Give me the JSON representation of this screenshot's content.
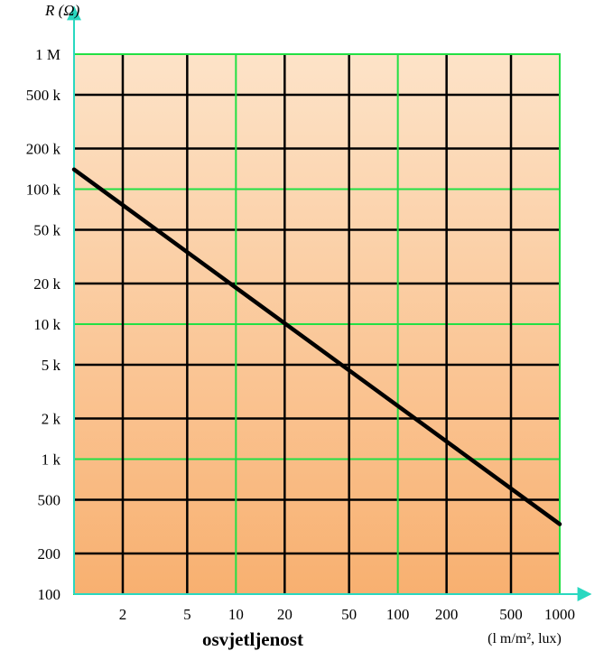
{
  "chart_data": {
    "type": "line",
    "ylabel": "R (Ω)",
    "xlabel": "osvjetljenost",
    "x_unit_label": "(l m/m², lux)",
    "x_scale": "log",
    "y_scale": "log",
    "x_ticks": [
      {
        "value": 2,
        "label": "2"
      },
      {
        "value": 5,
        "label": "5"
      },
      {
        "value": 10,
        "label": "10"
      },
      {
        "value": 20,
        "label": "20"
      },
      {
        "value": 50,
        "label": "50"
      },
      {
        "value": 100,
        "label": "100"
      },
      {
        "value": 200,
        "label": "200"
      },
      {
        "value": 500,
        "label": "500"
      },
      {
        "value": 1000,
        "label": "1000"
      }
    ],
    "y_ticks": [
      {
        "value": 100,
        "label": "100"
      },
      {
        "value": 200,
        "label": "200"
      },
      {
        "value": 500,
        "label": "500"
      },
      {
        "value": 1000,
        "label": "1 k"
      },
      {
        "value": 2000,
        "label": "2 k"
      },
      {
        "value": 5000,
        "label": "5 k"
      },
      {
        "value": 10000,
        "label": "10 k"
      },
      {
        "value": 20000,
        "label": "20 k"
      },
      {
        "value": 50000,
        "label": "50 k"
      },
      {
        "value": 100000,
        "label": "100 k"
      },
      {
        "value": 200000,
        "label": "200 k"
      },
      {
        "value": 500000,
        "label": "500 k"
      },
      {
        "value": 1000000,
        "label": "1 M"
      }
    ],
    "xlim": [
      1,
      1000
    ],
    "ylim": [
      100,
      1000000
    ],
    "series": [
      {
        "values": [
          {
            "x": 1,
            "y": 140000
          },
          {
            "x": 1000,
            "y": 330
          }
        ]
      }
    ],
    "grid": true,
    "colors": {
      "background_top": "#fde3c8",
      "background_bottom": "#f8b070",
      "grid_green": "#22e044",
      "grid_black": "#000000",
      "axis": "#29d8c0",
      "curve": "#000000"
    }
  }
}
